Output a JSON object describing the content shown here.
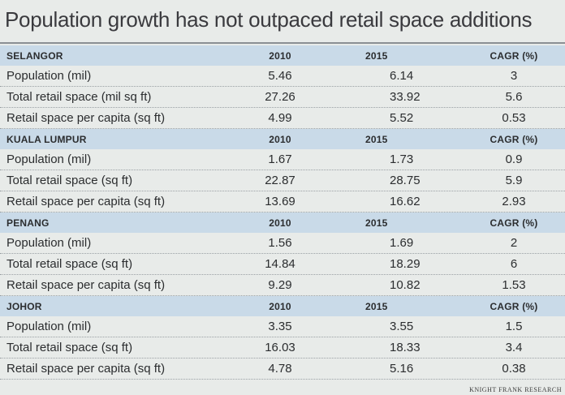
{
  "title": "Population growth has not outpaced retail space additions",
  "source": "KNIGHT FRANK RESEARCH",
  "sections": [
    {
      "name": "SELANGOR",
      "col1": "2010",
      "col2": "2015",
      "col3": "CAGR (%)",
      "rows": [
        {
          "label": "Population (mil)",
          "v2010": "5.46",
          "v2015": "6.14",
          "cagr": "3"
        },
        {
          "label": "Total retail space (mil sq ft)",
          "v2010": "27.26",
          "v2015": "33.92",
          "cagr": "5.6"
        },
        {
          "label": "Retail space per capita (sq ft)",
          "v2010": "4.99",
          "v2015": "5.52",
          "cagr": "0.53"
        }
      ]
    },
    {
      "name": "KUALA LUMPUR",
      "col1": "2010",
      "col2": "2015",
      "col3": "CAGR (%)",
      "rows": [
        {
          "label": "Population (mil)",
          "v2010": "1.67",
          "v2015": "1.73",
          "cagr": "0.9"
        },
        {
          "label": "Total retail space (sq ft)",
          "v2010": "22.87",
          "v2015": "28.75",
          "cagr": "5.9"
        },
        {
          "label": "Retail space per capita (sq ft)",
          "v2010": "13.69",
          "v2015": "16.62",
          "cagr": "2.93"
        }
      ]
    },
    {
      "name": "PENANG",
      "col1": "2010",
      "col2": "2015",
      "col3": "CAGR (%)",
      "rows": [
        {
          "label": "Population (mil)",
          "v2010": "1.56",
          "v2015": "1.69",
          "cagr": "2"
        },
        {
          "label": "Total retail space (sq ft)",
          "v2010": "14.84",
          "v2015": "18.29",
          "cagr": "6"
        },
        {
          "label": "Retail space per capita (sq ft)",
          "v2010": "9.29",
          "v2015": "10.82",
          "cagr": "1.53"
        }
      ]
    },
    {
      "name": "JOHOR",
      "col1": "2010",
      "col2": "2015",
      "col3": "CAGR (%)",
      "rows": [
        {
          "label": "Population (mil)",
          "v2010": "3.35",
          "v2015": "3.55",
          "cagr": "1.5"
        },
        {
          "label": "Total retail space (sq ft)",
          "v2010": "16.03",
          "v2015": "18.33",
          "cagr": "3.4"
        },
        {
          "label": "Retail space per capita (sq ft)",
          "v2010": "4.78",
          "v2015": "5.16",
          "cagr": "0.38"
        }
      ]
    }
  ]
}
